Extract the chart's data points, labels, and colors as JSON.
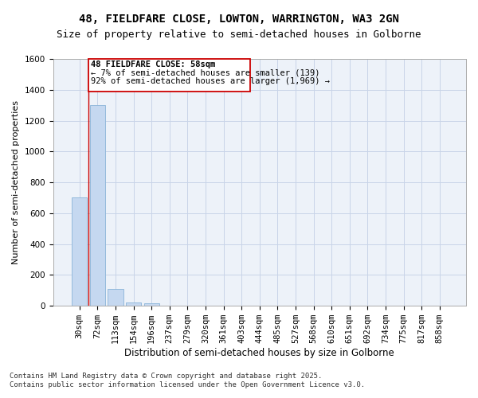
{
  "title": "48, FIELDFARE CLOSE, LOWTON, WARRINGTON, WA3 2GN",
  "subtitle": "Size of property relative to semi-detached houses in Golborne",
  "xlabel": "Distribution of semi-detached houses by size in Golborne",
  "ylabel": "Number of semi-detached properties",
  "categories": [
    "30sqm",
    "72sqm",
    "113sqm",
    "154sqm",
    "196sqm",
    "237sqm",
    "279sqm",
    "320sqm",
    "361sqm",
    "403sqm",
    "444sqm",
    "485sqm",
    "527sqm",
    "568sqm",
    "610sqm",
    "651sqm",
    "692sqm",
    "734sqm",
    "775sqm",
    "817sqm",
    "858sqm"
  ],
  "values": [
    700,
    1300,
    110,
    20,
    15,
    0,
    0,
    0,
    0,
    0,
    0,
    0,
    0,
    0,
    0,
    0,
    0,
    0,
    0,
    0,
    0
  ],
  "bar_color": "#c5d8f0",
  "bar_edge_color": "#8ab4d8",
  "grid_color": "#c8d4e8",
  "background_color": "#edf2f9",
  "ylim_max": 1600,
  "yticks": [
    0,
    200,
    400,
    600,
    800,
    1000,
    1200,
    1400,
    1600
  ],
  "annotation_title": "48 FIELDFARE CLOSE: 58sqm",
  "annotation_line1": "← 7% of semi-detached houses are smaller (139)",
  "annotation_line2": "92% of semi-detached houses are larger (1,969) →",
  "annotation_box_color": "#ffffff",
  "annotation_border_color": "#cc0000",
  "vline_color": "#cc0000",
  "footer_line1": "Contains HM Land Registry data © Crown copyright and database right 2025.",
  "footer_line2": "Contains public sector information licensed under the Open Government Licence v3.0.",
  "title_fontsize": 10,
  "subtitle_fontsize": 9,
  "tick_fontsize": 7.5,
  "ylabel_fontsize": 8,
  "xlabel_fontsize": 8.5,
  "annotation_fontsize": 7.5,
  "footer_fontsize": 6.5
}
